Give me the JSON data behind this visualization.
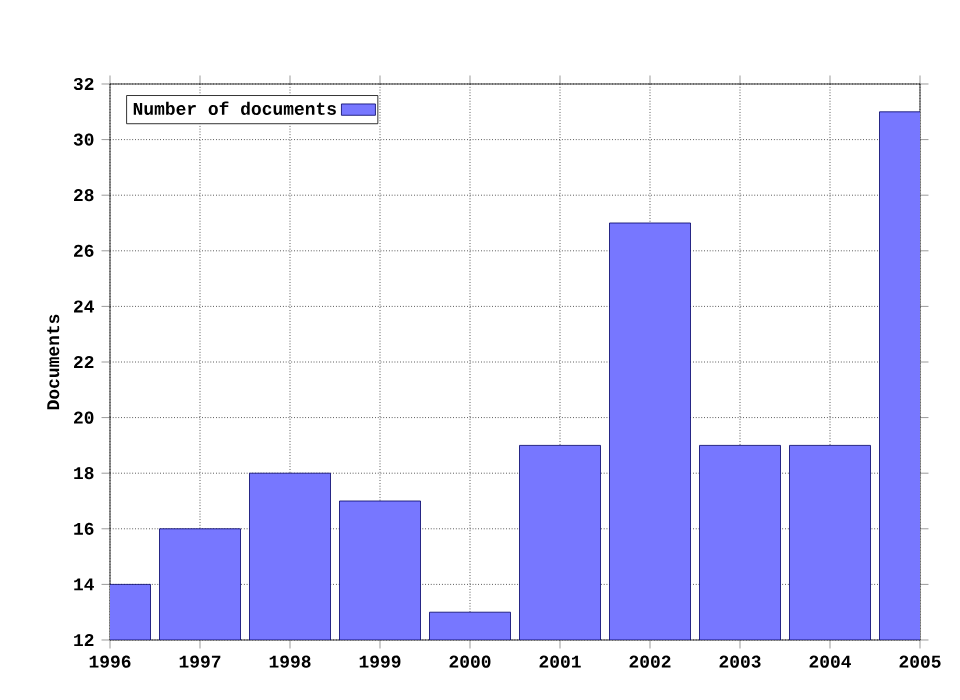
{
  "chart_data": {
    "type": "bar",
    "ylabel": "Documents",
    "x": [
      1996,
      1997,
      1998,
      1999,
      2000,
      2001,
      2002,
      2003,
      2004,
      2005
    ],
    "series": [
      {
        "name": "Number of documents",
        "color": "#7777ff",
        "values": [
          14,
          16,
          18,
          17,
          13,
          19,
          27,
          19,
          19,
          31
        ]
      }
    ],
    "xlim": [
      1996,
      2005
    ],
    "xticks": [
      1996,
      1997,
      1998,
      1999,
      2000,
      2001,
      2002,
      2003,
      2004,
      2005
    ],
    "ylim": [
      12,
      32
    ],
    "yticks": [
      12,
      14,
      16,
      18,
      20,
      22,
      24,
      26,
      28,
      30,
      32
    ],
    "grid": true,
    "legend": "top left"
  }
}
